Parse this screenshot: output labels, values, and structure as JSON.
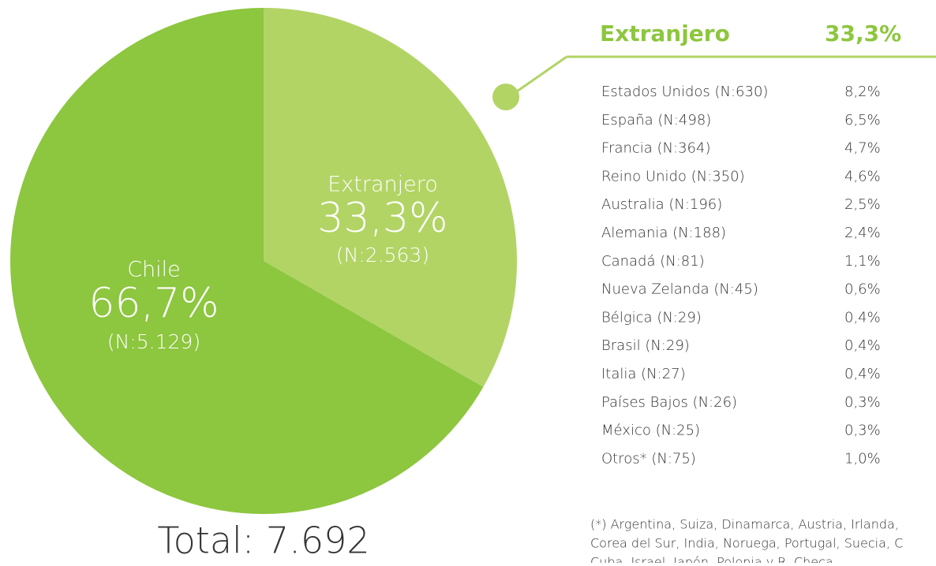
{
  "chart_data": {
    "type": "pie",
    "categories": [
      "Extranjero",
      "Chile"
    ],
    "values": [
      33.3,
      66.7
    ],
    "value_labels": [
      "33,3%",
      "66,7%"
    ],
    "n_labels": [
      "(N:2.563)",
      "(N:5.129)"
    ],
    "colors": [
      "#b2d465",
      "#8dc63f"
    ],
    "total": "Total: 7.692"
  },
  "breakdown": {
    "title": "Extranjero",
    "share": "33,3%",
    "rows": [
      [
        "Estados Unidos (N:630)",
        "8,2%"
      ],
      [
        "España (N:498)",
        "6,5%"
      ],
      [
        "Francia (N:364)",
        "4,7%"
      ],
      [
        "Reino Unido (N:350)",
        "4,6%"
      ],
      [
        "Australia (N:196)",
        "2,5%"
      ],
      [
        "Alemania (N:188)",
        "2,4%"
      ],
      [
        "Canadá (N:81)",
        "1,1%"
      ],
      [
        "Nueva Zelanda (N:45)",
        "0,6%"
      ],
      [
        "Bélgica (N:29)",
        "0,4%"
      ],
      [
        "Brasil (N:29)",
        "0,4%"
      ],
      [
        "Italia (N:27)",
        "0,4%"
      ],
      [
        "Países Bajos (N:26)",
        "0,3%"
      ],
      [
        "México (N:25)",
        "0,3%"
      ],
      [
        "Otros* (N:75)",
        "1,0%"
      ]
    ],
    "footnote": [
      "(*) Argentina, Suiza, Dinamarca, Austria, Irlanda,",
      "Corea del Sur, India, Noruega, Portugal, Suecia, C",
      "Cuba, Israel, Japón, Polonia y R. Checa"
    ]
  }
}
